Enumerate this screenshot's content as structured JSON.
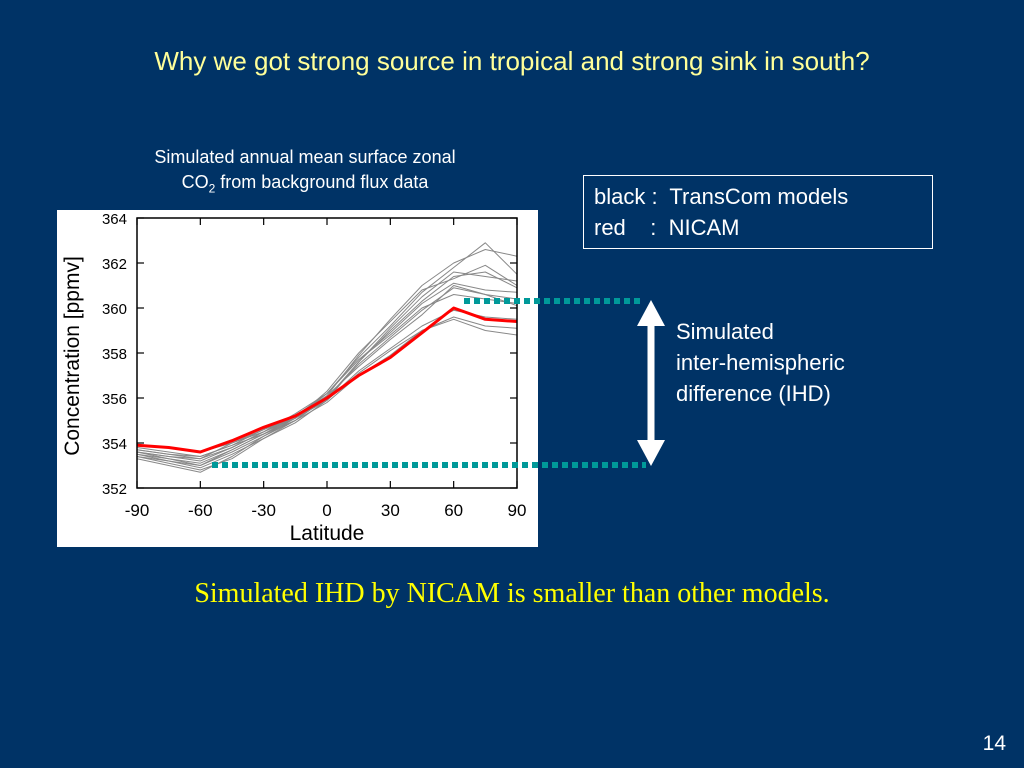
{
  "slide": {
    "title": "Why we got strong source in tropical and strong sink in south?",
    "caption_line1": "Simulated annual mean surface zonal",
    "caption_co2_prefix": "CO",
    "caption_co2_sub": "2",
    "caption_line2_rest": " from background flux data",
    "legend_line1": "black :  TransCom models",
    "legend_line2": "red    :  NICAM",
    "ihd_line1": "Simulated",
    "ihd_line2": "inter-hemispheric",
    "ihd_line3": "difference (IHD)",
    "conclusion": "Simulated IHD by NICAM is smaller than other models.",
    "page_number": "14",
    "colors": {
      "background": "#003366",
      "title": "#ffff99",
      "conclusion": "#ffff00",
      "dotted_guides": "#009999",
      "arrow": "#ffffff"
    }
  },
  "chart_data": {
    "type": "line",
    "xlabel": "Latitude",
    "ylabel": "Concentration [ppmv]",
    "xlim": [
      -90,
      90
    ],
    "ylim": [
      352,
      364
    ],
    "xticks": [
      -90,
      -60,
      -30,
      0,
      30,
      60,
      90
    ],
    "xtick_labels": [
      "-90",
      "-60",
      "-30",
      "0",
      "30",
      "60",
      "90"
    ],
    "yticks": [
      352,
      354,
      356,
      358,
      360,
      362,
      364
    ],
    "ytick_labels": [
      "352",
      "354",
      "356",
      "358",
      "360",
      "362",
      "364"
    ],
    "grid": false,
    "x": [
      -90,
      -75,
      -60,
      -45,
      -30,
      -15,
      0,
      15,
      30,
      45,
      60,
      75,
      90
    ],
    "series": [
      {
        "color": "#ff0000",
        "values": [
          353.9,
          353.8,
          353.6,
          354.1,
          354.7,
          355.2,
          356.0,
          357.0,
          357.8,
          358.9,
          360.0,
          359.5,
          359.4
        ]
      },
      {
        "color": "#888888",
        "values": [
          353.6,
          353.4,
          353.3,
          353.8,
          354.5,
          355.3,
          356.2,
          357.7,
          358.8,
          360.0,
          360.6,
          360.4,
          360.2
        ]
      },
      {
        "color": "#888888",
        "values": [
          353.7,
          353.5,
          353.3,
          354.0,
          354.6,
          355.2,
          356.1,
          357.4,
          358.6,
          359.7,
          361.0,
          360.6,
          360.4
        ]
      },
      {
        "color": "#888888",
        "values": [
          353.8,
          353.6,
          353.4,
          353.9,
          354.6,
          355.1,
          355.9,
          357.2,
          358.2,
          359.2,
          359.9,
          359.6,
          359.5
        ]
      },
      {
        "color": "#888888",
        "values": [
          353.5,
          353.2,
          352.9,
          353.5,
          354.2,
          354.9,
          355.9,
          357.6,
          359.1,
          360.5,
          361.6,
          361.4,
          361.2
        ]
      },
      {
        "color": "#888888",
        "values": [
          353.4,
          353.1,
          352.8,
          353.3,
          354.2,
          355.0,
          356.1,
          357.9,
          359.5,
          361.0,
          362.0,
          362.6,
          362.3
        ]
      },
      {
        "color": "#888888",
        "values": [
          353.9,
          353.8,
          353.6,
          354.0,
          354.5,
          355.1,
          355.9,
          357.1,
          358.1,
          359.0,
          359.6,
          359.2,
          359.1
        ]
      },
      {
        "color": "#888888",
        "values": [
          353.5,
          353.3,
          353.0,
          353.7,
          354.4,
          355.2,
          356.2,
          357.8,
          359.2,
          360.7,
          361.8,
          362.9,
          361.5
        ]
      },
      {
        "color": "#888888",
        "values": [
          353.6,
          353.4,
          353.2,
          353.8,
          354.5,
          355.2,
          356.0,
          357.5,
          358.7,
          359.9,
          360.9,
          360.6,
          360.1
        ]
      },
      {
        "color": "#888888",
        "values": [
          353.3,
          353.0,
          352.7,
          353.4,
          354.3,
          355.1,
          356.3,
          358.0,
          359.4,
          360.8,
          361.3,
          361.9,
          361.0
        ]
      },
      {
        "color": "#888888",
        "values": [
          353.7,
          353.5,
          353.4,
          353.9,
          354.4,
          355.0,
          355.8,
          357.0,
          357.9,
          359.0,
          359.5,
          359.0,
          358.8
        ]
      },
      {
        "color": "#888888",
        "values": [
          353.6,
          353.3,
          353.1,
          353.7,
          354.4,
          355.1,
          356.2,
          357.7,
          358.9,
          360.2,
          361.1,
          360.8,
          360.7
        ]
      },
      {
        "color": "#888888",
        "values": [
          353.4,
          353.2,
          353.0,
          353.6,
          354.3,
          355.0,
          356.0,
          357.6,
          359.0,
          360.3,
          361.4,
          361.6,
          360.9
        ]
      }
    ]
  }
}
